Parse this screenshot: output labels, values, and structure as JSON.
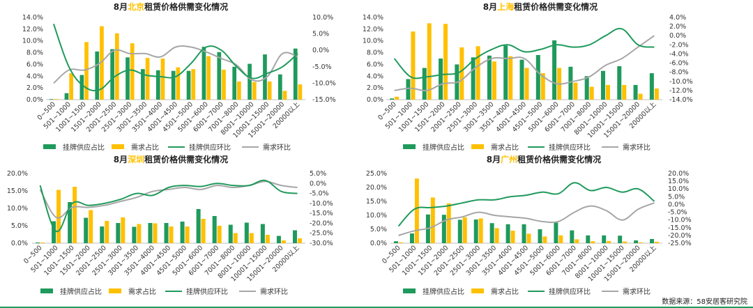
{
  "colors": {
    "bar_supply": "#1f9a5c",
    "bar_demand": "#ffc000",
    "line_supply": "#1f9a5c",
    "line_demand": "#a6a6a6",
    "title_highlight": "#ffc000",
    "axis": "#555555"
  },
  "legend": {
    "bar_supply": "挂牌供应占比",
    "bar_demand": "需求占比",
    "line_supply": "挂牌供应环比",
    "line_demand": "需求环比"
  },
  "categories": [
    "0~500",
    "501~1000",
    "1001~1500",
    "1501~2000",
    "2001~2500",
    "2501~3000",
    "3001~3500",
    "3501~4000",
    "4001~4500",
    "4501~5000",
    "5001~6000",
    "6001~7000",
    "7001~8000",
    "8001~10000",
    "10001~15000",
    "15001~20000",
    "20000以上"
  ],
  "source": "数据来源：58安居客研究院",
  "chart_data": [
    {
      "type": "bar",
      "title_prefix": "8月",
      "title_city": "北京",
      "title_suffix": "租赁价格供需变化情况",
      "ylim_left": [
        0,
        14
      ],
      "yticks_left": [
        "0.0%",
        "2.0%",
        "4.0%",
        "6.0%",
        "8.0%",
        "10.0%",
        "12.0%",
        "14.0%"
      ],
      "ylim_right": [
        -15,
        10
      ],
      "yticks_right": [
        "-15.0%",
        "-10.0%",
        "-5.0%",
        "0.0%",
        "5.0%",
        "10.0%"
      ],
      "series": [
        {
          "name": "挂牌供应占比",
          "axis": "left",
          "values": [
            0.1,
            1.1,
            4.2,
            8.2,
            8.6,
            7.2,
            5.2,
            5.0,
            4.9,
            4.9,
            9.0,
            8.1,
            5.6,
            6.1,
            7.7,
            4.3,
            8.7
          ]
        },
        {
          "name": "需求占比",
          "axis": "left",
          "values": [
            0.1,
            4.5,
            9.8,
            12.5,
            11.3,
            9.6,
            7.1,
            7.0,
            5.5,
            5.2,
            7.4,
            5.1,
            3.1,
            3.0,
            3.1,
            1.5,
            2.6
          ]
        },
        {
          "name": "挂牌供应环比",
          "axis": "right",
          "values": [
            8,
            -5,
            -11,
            -12,
            -8,
            -6,
            -7.5,
            -8,
            -8,
            -4,
            1,
            0,
            -5,
            -8.5,
            -7,
            -5,
            -1
          ]
        },
        {
          "name": "需求环比",
          "axis": "right",
          "values": [
            -10,
            -6,
            -6,
            -4,
            0,
            -1,
            -1,
            -2,
            1,
            1,
            -0.5,
            -2.5,
            -4.5,
            -9,
            -8,
            -1,
            -2
          ]
        }
      ]
    },
    {
      "type": "bar",
      "title_prefix": "8月",
      "title_city": "上海",
      "title_suffix": "租赁价格供需变化情况",
      "ylim_left": [
        0,
        14
      ],
      "yticks_left": [
        "0.0%",
        "2.0%",
        "4.0%",
        "6.0%",
        "8.0%",
        "10.0%",
        "12.0%",
        "14.0%"
      ],
      "ylim_right": [
        -14,
        4
      ],
      "yticks_right": [
        "-14.0%",
        "-12.0%",
        "-10.0%",
        "-8.0%",
        "-6.0%",
        "-4.0%",
        "-2.0%",
        "0.0%",
        "2.0%",
        "4.0%"
      ],
      "series": [
        {
          "name": "挂牌供应占比",
          "axis": "left",
          "values": [
            0.2,
            3.5,
            5.4,
            7.0,
            6.0,
            7.2,
            7.5,
            9.2,
            6.8,
            7.6,
            10.1,
            5.6,
            4.0,
            4.9,
            5.7,
            2.5,
            4.5
          ]
        },
        {
          "name": "需求占比",
          "axis": "left",
          "values": [
            0.5,
            11.6,
            13.0,
            12.9,
            8.9,
            9.1,
            6.5,
            7.4,
            5.4,
            4.5,
            5.4,
            2.9,
            2.2,
            2.5,
            2.5,
            1.0,
            1.9
          ]
        },
        {
          "name": "挂牌供应环比",
          "axis": "right",
          "values": [
            -5,
            -9,
            -9,
            -8.5,
            -8,
            -5,
            -3,
            -2,
            -3.5,
            -3,
            -2,
            -2.5,
            -2,
            0,
            1.5,
            -2,
            -2.5
          ]
        },
        {
          "name": "需求环比",
          "axis": "right",
          "values": [
            -12,
            -11.5,
            -12,
            -10.5,
            -10,
            -7,
            -5,
            -5,
            -5,
            -8.5,
            -10.5,
            -10,
            -9,
            -6.5,
            -5,
            -2.5,
            0
          ]
        }
      ]
    },
    {
      "type": "bar",
      "title_prefix": "8月",
      "title_city": "深圳",
      "title_suffix": "租赁价格供需变化情况",
      "ylim_left": [
        0,
        20
      ],
      "yticks_left": [
        "0.0%",
        "5.0%",
        "10.0%",
        "15.0%",
        "20.0%"
      ],
      "ylim_right": [
        -30,
        5
      ],
      "yticks_right": [
        "-30.0%",
        "-25.0%",
        "-20.0%",
        "-15.0%",
        "-10.0%",
        "-5.0%",
        "0.0%",
        "5.0%"
      ],
      "series": [
        {
          "name": "挂牌供应占比",
          "axis": "left",
          "values": [
            0.2,
            6.3,
            11.8,
            7.3,
            4.8,
            5.8,
            4.7,
            5.8,
            5.8,
            6.2,
            9.8,
            7.8,
            5.3,
            5.9,
            5.5,
            2.1,
            3.7
          ]
        },
        {
          "name": "需求占比",
          "axis": "left",
          "values": [
            0.2,
            15.3,
            16.2,
            9.5,
            6.4,
            7.4,
            5.5,
            5.7,
            4.8,
            4.8,
            7.0,
            5.0,
            2.9,
            2.9,
            2.4,
            0.8,
            1.4
          ]
        },
        {
          "name": "挂牌供应环比",
          "axis": "right",
          "values": [
            -1,
            -24,
            -10,
            -11,
            -10,
            -8,
            -5,
            -6,
            -2,
            -1,
            -1.5,
            0,
            -1,
            -1,
            1.5,
            -4,
            -5
          ]
        },
        {
          "name": "需求环比",
          "axis": "right",
          "values": [
            -3,
            -17,
            -12,
            -12,
            -11,
            -9,
            -7,
            -4,
            -3,
            -2,
            -3,
            -1,
            -2,
            -1,
            1,
            -1,
            -2
          ]
        }
      ]
    },
    {
      "type": "bar",
      "title_prefix": "8月",
      "title_city": "广州",
      "title_suffix": "租赁价格供需变化情况",
      "ylim_left": [
        0,
        25
      ],
      "yticks_left": [
        "0.0%",
        "5.0%",
        "10.0%",
        "15.0%",
        "20.0%",
        "25.0%"
      ],
      "ylim_right": [
        -25,
        20
      ],
      "yticks_right": [
        "-25.0%",
        "-20.0%",
        "-15.0%",
        "-10.0%",
        "-5.0%",
        "0.0%",
        "5.0%",
        "10.0%",
        "15.0%",
        "20.0%"
      ],
      "series": [
        {
          "name": "挂牌供应占比",
          "axis": "left",
          "values": [
            0.7,
            3.5,
            10.3,
            10.2,
            8.4,
            8.5,
            7.2,
            6.8,
            6.8,
            5.0,
            7.4,
            4.6,
            2.8,
            2.8,
            2.7,
            1.0,
            1.5
          ]
        },
        {
          "name": "需求占比",
          "axis": "left",
          "values": [
            0.3,
            23.2,
            16.4,
            14.3,
            9.3,
            8.9,
            5.4,
            4.5,
            3.4,
            2.4,
            2.8,
            1.4,
            0.7,
            0.8,
            0.6,
            0.3,
            0.5
          ]
        },
        {
          "name": "挂牌供应环比",
          "axis": "right",
          "values": [
            -14,
            -3,
            -2,
            -1,
            1,
            3,
            3,
            5,
            6,
            8,
            7,
            14,
            9,
            11,
            8,
            10,
            2
          ]
        },
        {
          "name": "需求环比",
          "axis": "right",
          "values": [
            -20,
            -17,
            -15,
            -10,
            -8,
            -5,
            -7,
            -8,
            -9,
            -11,
            -11,
            -5,
            -1,
            -4,
            -10,
            -3,
            1
          ]
        }
      ]
    }
  ]
}
